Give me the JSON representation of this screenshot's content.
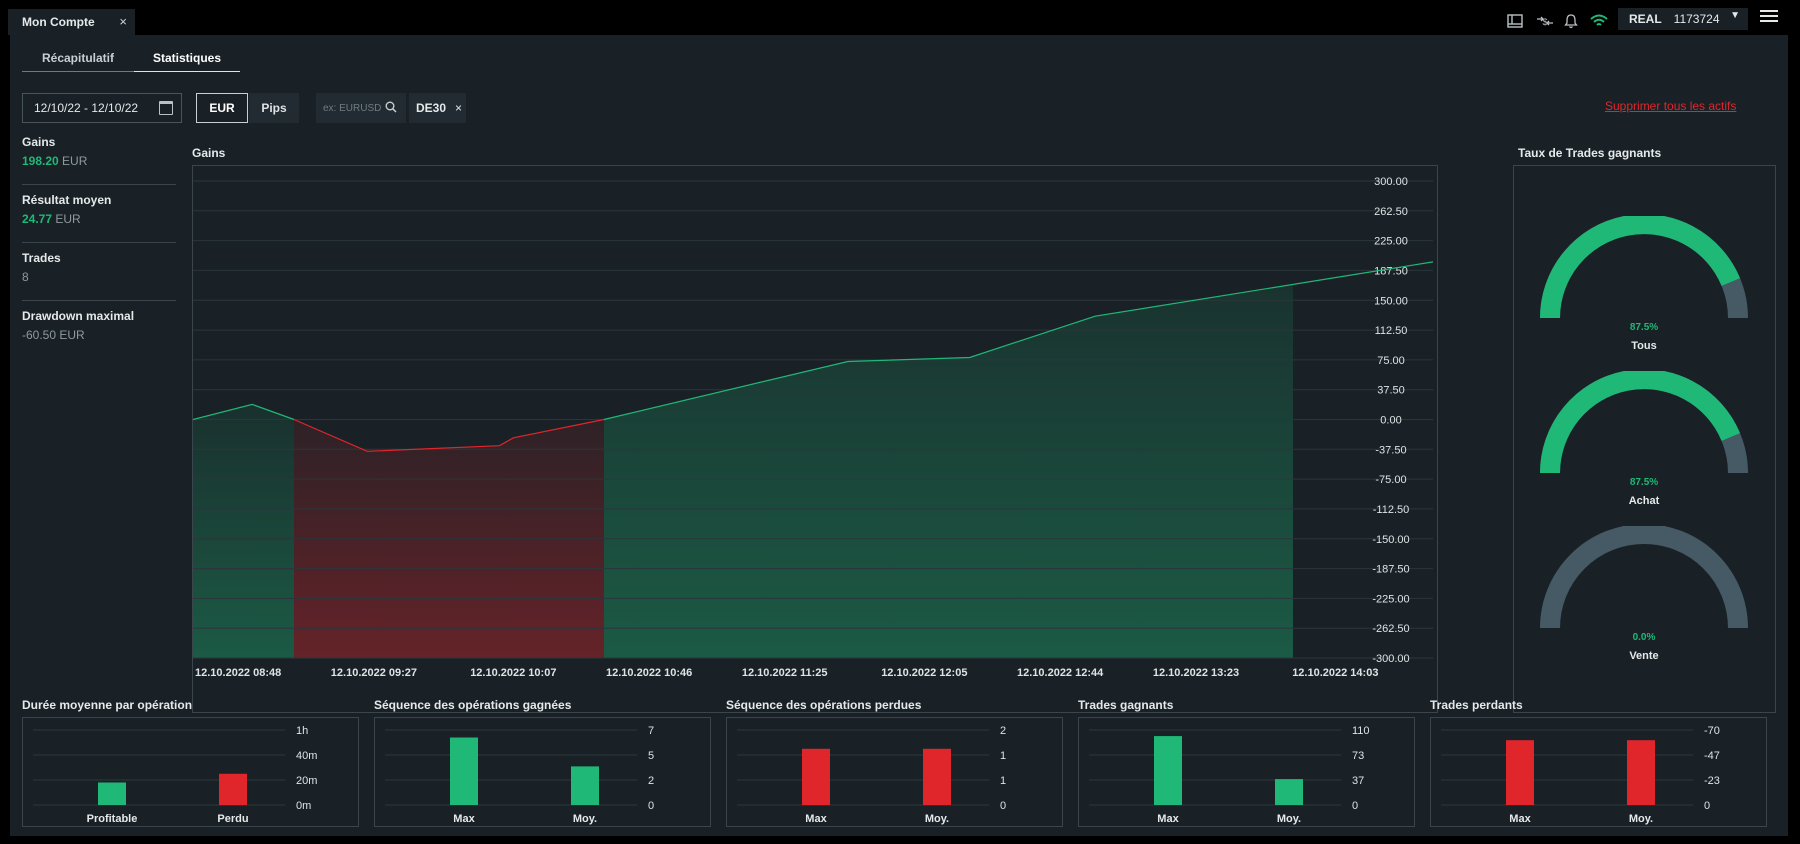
{
  "window": {
    "tab_label": "Mon Compte",
    "tab_close": "×",
    "account_mode": "REAL",
    "account_number": "1173724",
    "account_caret": "▼"
  },
  "subtabs": [
    "Récapitulatif",
    "Statistiques"
  ],
  "filters": {
    "date_range": "12/10/22 - 12/10/22",
    "unit_eur": "EUR",
    "unit_pips": "Pips",
    "unit_selected": "EUR",
    "search_placeholder": "ex: EURUSD",
    "chip_label": "DE30",
    "chip_close": "×",
    "delete_all": "Supprimer tous les actifs"
  },
  "metrics": [
    {
      "label": "Gains",
      "value": "198.20",
      "unit": "EUR",
      "tone": "green"
    },
    {
      "label": "Résultat moyen",
      "value": "24.77",
      "unit": "EUR",
      "tone": "green"
    },
    {
      "label": "Trades",
      "value": "8",
      "unit": "",
      "tone": "grey"
    },
    {
      "label": "Drawdown maximal",
      "value": "-60.50",
      "unit": "EUR",
      "tone": "grey"
    }
  ],
  "colors": {
    "positive": "#1fb877",
    "negative": "#e0262b",
    "neutral": "#455a64",
    "panel": "#192126"
  },
  "chart_data": [
    {
      "type": "area",
      "title": "Gains",
      "ylim": [
        -300,
        300
      ],
      "y_ticks": [
        "300.00",
        "262.50",
        "225.00",
        "187.50",
        "150.00",
        "112.50",
        "75.00",
        "37.50",
        "0.00",
        "-37.50",
        "-75.00",
        "-112.50",
        "-150.00",
        "-187.50",
        "-225.00",
        "-262.50",
        "-300.00"
      ],
      "x_ticks": [
        "12.10.2022 08:48",
        "12.10.2022 09:27",
        "12.10.2022 10:07",
        "12.10.2022 10:46",
        "12.10.2022 11:25",
        "12.10.2022 12:05",
        "12.10.2022 12:44",
        "12.10.2022 13:23",
        "12.10.2022 14:03"
      ],
      "x_domain": [
        "12.10.2022 08:48",
        "12.10.2022 14:44"
      ],
      "x": [
        "12.10.2022 08:48",
        "12.10.2022 09:05",
        "12.10.2022 09:17",
        "12.10.2022 09:38",
        "12.10.2022 10:16",
        "12.10.2022 10:20",
        "12.10.2022 10:46",
        "12.10.2022 11:56",
        "12.10.2022 12:31",
        "12.10.2022 13:07",
        "12.10.2022 14:44"
      ],
      "y": [
        0,
        19,
        0,
        -40,
        -33,
        -23,
        0,
        73,
        78,
        130,
        198.2
      ],
      "grid": true,
      "positive_color": "#1fb877",
      "negative_color": "#e0262b"
    },
    {
      "type": "gauge",
      "title": "Taux de Trades gagnants",
      "gauges": [
        {
          "label": "Tous",
          "value": 87.5,
          "text": "87.5%"
        },
        {
          "label": "Achat",
          "value": 87.5,
          "text": "87.5%"
        },
        {
          "label": "Vente",
          "value": 0.0,
          "text": "0.0%"
        }
      ]
    },
    {
      "type": "bar",
      "title": "Durée moyenne par opération",
      "categories": [
        "Profitable",
        "Perdu"
      ],
      "values": [
        18,
        25
      ],
      "value_unit": "minutes",
      "ylim": [
        0,
        60
      ],
      "y_ticks": [
        "1h",
        "40m",
        "20m",
        "0m"
      ],
      "bar_colors": [
        "#1fb877",
        "#e0262b"
      ]
    },
    {
      "type": "bar",
      "title": "Séquence des opérations gagnées",
      "categories": [
        "Max",
        "Moy."
      ],
      "values": [
        6.3,
        3.6
      ],
      "ylim": [
        0,
        7
      ],
      "y_ticks": [
        "7",
        "5",
        "2",
        "0"
      ],
      "bar_colors": [
        "#1fb877",
        "#1fb877"
      ]
    },
    {
      "type": "bar",
      "title": "Séquence des opérations perdues",
      "categories": [
        "Max",
        "Moy."
      ],
      "values": [
        1.5,
        1.5
      ],
      "ylim": [
        0,
        2
      ],
      "y_ticks": [
        "2",
        "1",
        "1",
        "0"
      ],
      "bar_colors": [
        "#e0262b",
        "#e0262b"
      ]
    },
    {
      "type": "bar",
      "title": "Trades gagnants",
      "categories": [
        "Max",
        "Moy."
      ],
      "values": [
        101,
        38
      ],
      "ylim": [
        0,
        110
      ],
      "y_ticks": [
        "110",
        "73",
        "37",
        "0"
      ],
      "bar_colors": [
        "#1fb877",
        "#1fb877"
      ]
    },
    {
      "type": "bar",
      "title": "Trades perdants",
      "categories": [
        "Max",
        "Moy."
      ],
      "values": [
        -60.5,
        -60.5
      ],
      "ylim": [
        0,
        -70
      ],
      "y_ticks": [
        "-70",
        "-47",
        "-23",
        "0"
      ],
      "bar_colors": [
        "#e0262b",
        "#e0262b"
      ]
    }
  ]
}
